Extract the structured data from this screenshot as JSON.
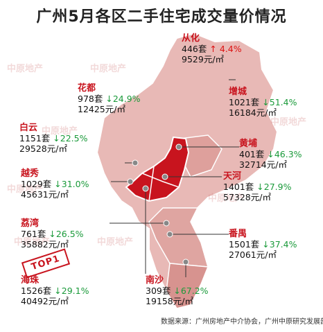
{
  "title": "广州5月各区二手住宅成交量价情况",
  "source": "数据来源：广州房地产中介协会，广州中原研究发展部",
  "watermark": "中原地产",
  "stamp": "TOP1",
  "colors": {
    "map_light": "#e8b9b6",
    "map_mid": "#dc9490",
    "map_dark": "#c8141e",
    "label_red": "#c8141e",
    "up": "#dd1111",
    "down": "#1a9a3a"
  },
  "districts": [
    {
      "name": "从化",
      "volume": "446套",
      "arrow": "↑",
      "change": "4.4%",
      "dir": "up",
      "price": "9529",
      "unit": "元/㎡"
    },
    {
      "name": "花都",
      "volume": "978套",
      "arrow": "↓",
      "change": "24.9%",
      "dir": "down",
      "price": "12425",
      "unit": "元/㎡"
    },
    {
      "name": "增城",
      "volume": "1021套",
      "arrow": "↓",
      "change": "51.4%",
      "dir": "down",
      "price": "16184",
      "unit": "元/㎡"
    },
    {
      "name": "白云",
      "volume": "1151套",
      "arrow": "↓",
      "change": "22.5%",
      "dir": "down",
      "price": "29528",
      "unit": "元/㎡"
    },
    {
      "name": "黄埔",
      "volume": "401套",
      "arrow": "↓",
      "change": "46.3%",
      "dir": "down",
      "price": "32714",
      "unit": "元/㎡"
    },
    {
      "name": "越秀",
      "volume": "1029套",
      "arrow": "↓",
      "change": "31.0%",
      "dir": "down",
      "price": "45631",
      "unit": "元/㎡"
    },
    {
      "name": "天河",
      "volume": "1401套",
      "arrow": "↓",
      "change": "27.9%",
      "dir": "down",
      "price": "57328",
      "unit": "元/㎡"
    },
    {
      "name": "荔湾",
      "volume": "761套",
      "arrow": "↓",
      "change": "26.5%",
      "dir": "down",
      "price": "35882",
      "unit": "元/㎡"
    },
    {
      "name": "番禺",
      "volume": "1501套",
      "arrow": "↓",
      "change": "37.4%",
      "dir": "down",
      "price": "27061",
      "unit": "元/㎡"
    },
    {
      "name": "海珠",
      "volume": "1526套",
      "arrow": "↓",
      "change": "29.1%",
      "dir": "down",
      "price": "40492",
      "unit": "元/㎡"
    },
    {
      "name": "南沙",
      "volume": "309套",
      "arrow": "↓",
      "change": "67.2%",
      "dir": "down",
      "price": "19158",
      "unit": "元/㎡"
    }
  ]
}
